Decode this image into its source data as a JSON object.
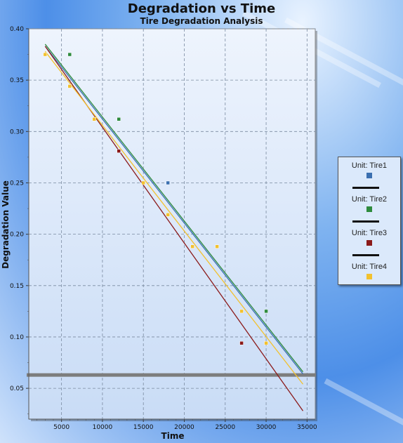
{
  "chart_data": {
    "type": "scatter",
    "title": "Degradation vs Time",
    "subtitle": "Tire Degradation Analysis",
    "xlabel": "Time",
    "ylabel": "Degradation Value",
    "xlim": [
      1000,
      36000
    ],
    "ylim": [
      0.02,
      0.4
    ],
    "x_ticks": [
      5000,
      10000,
      15000,
      20000,
      25000,
      30000,
      35000
    ],
    "y_ticks": [
      0.05,
      0.1,
      0.15,
      0.2,
      0.25,
      0.3,
      0.35,
      0.4
    ],
    "x_tick_labels": [
      "5000",
      "10000",
      "15000",
      "20000",
      "25000",
      "30000",
      "35000"
    ],
    "y_tick_labels": [
      "0.05",
      "0.10",
      "0.15",
      "0.20",
      "0.25",
      "0.30",
      "0.35",
      "0.40"
    ],
    "grid": true,
    "legend_position": "right",
    "threshold_line": 0.063,
    "series": [
      {
        "name": "Unit: Tire1",
        "color": "#3a6fb0",
        "points": [
          [
            18000,
            0.25
          ]
        ],
        "fit": [
          [
            3000,
            0.383
          ],
          [
            34500,
            0.064
          ]
        ]
      },
      {
        "name": "Unit: Tire2",
        "color": "#2e8b3e",
        "points": [
          [
            6000,
            0.375
          ],
          [
            12000,
            0.312
          ],
          [
            30000,
            0.125
          ]
        ],
        "fit": [
          [
            3000,
            0.385
          ],
          [
            34500,
            0.066
          ]
        ]
      },
      {
        "name": "Unit: Tire3",
        "color": "#8b1a1a",
        "points": [
          [
            12000,
            0.281
          ],
          [
            27000,
            0.094
          ]
        ],
        "fit": [
          [
            3000,
            0.383
          ],
          [
            34500,
            0.028
          ]
        ]
      },
      {
        "name": "Unit: Tire4",
        "color": "#f2c12e",
        "points": [
          [
            3000,
            0.375
          ],
          [
            6000,
            0.344
          ],
          [
            9000,
            0.312
          ],
          [
            15000,
            0.25
          ],
          [
            18000,
            0.219
          ],
          [
            21000,
            0.188
          ],
          [
            24000,
            0.188
          ],
          [
            27000,
            0.125
          ],
          [
            30000,
            0.094
          ]
        ],
        "fit": [
          [
            3000,
            0.378
          ],
          [
            34500,
            0.054
          ]
        ]
      }
    ]
  }
}
